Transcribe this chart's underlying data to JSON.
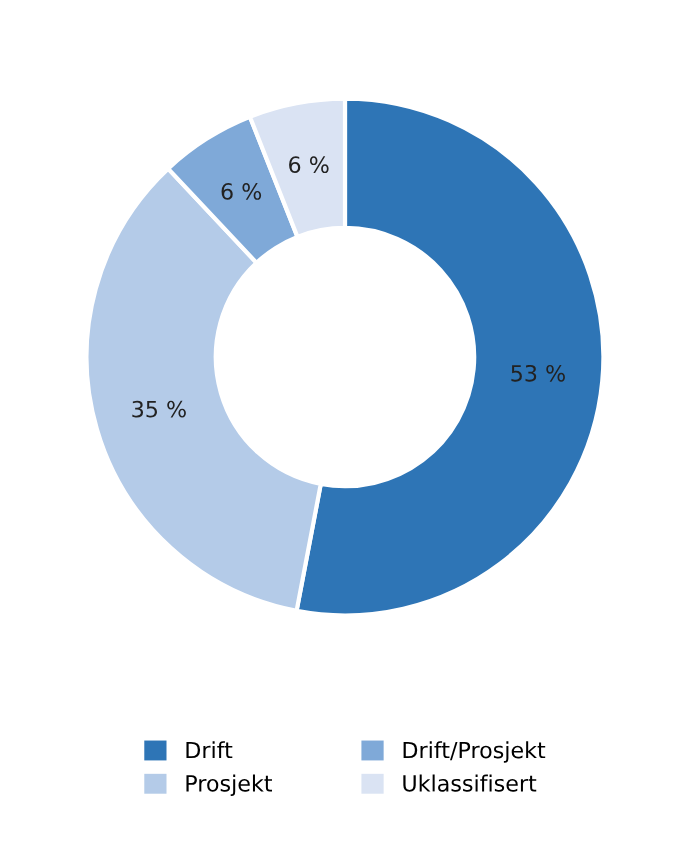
{
  "chart_data": {
    "type": "donut",
    "categories": [
      "Drift",
      "Prosjekt",
      "Drift/Prosjekt",
      "Uklassifisert"
    ],
    "values": [
      53,
      35,
      6,
      6
    ],
    "colors": [
      "#2e75b6",
      "#b4cbe8",
      "#7fa9d8",
      "#dae3f3"
    ],
    "value_labels": [
      "53 %",
      "35 %",
      "6 %",
      "6 %"
    ],
    "legend": "bottom"
  }
}
